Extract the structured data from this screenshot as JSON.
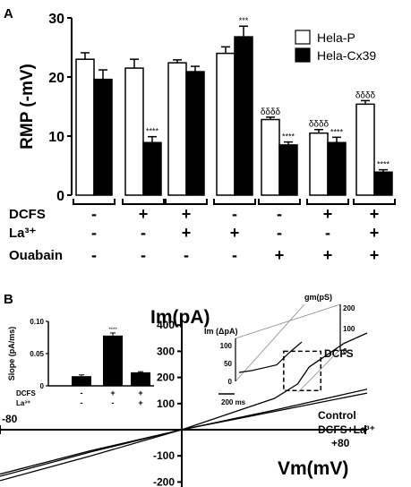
{
  "panels": {
    "a_label": "A",
    "b_label": "B"
  },
  "chart_data": [
    {
      "type": "bar",
      "panel": "A",
      "ylabel": "RMP (-mV)",
      "ylim": [
        0,
        30
      ],
      "yticks": [
        "0",
        "10",
        "20",
        "30"
      ],
      "legend": {
        "placement": "top-right",
        "items": [
          {
            "name": "Hela-P",
            "fill": "#ffffff"
          },
          {
            "name": "Hela-Cx39",
            "fill": "#000000"
          }
        ]
      },
      "conditions": [
        {
          "name": "DCFS",
          "marks": [
            "-",
            "+",
            "+",
            "-",
            "-",
            "+",
            "+"
          ]
        },
        {
          "name": "La³⁺",
          "marks": [
            "-",
            "-",
            "+",
            "+",
            "-",
            "-",
            "+"
          ]
        },
        {
          "name": "Ouabain",
          "marks": [
            "-",
            "-",
            "-",
            "-",
            "+",
            "+",
            "+"
          ]
        }
      ],
      "series": [
        {
          "name": "Hela-P",
          "values": [
            23.0,
            21.5,
            22.4,
            24.0,
            12.8,
            10.5,
            15.4
          ],
          "errors": [
            1.1,
            1.5,
            0.5,
            1.1,
            0.4,
            0.6,
            0.6
          ],
          "annotations": [
            "",
            "",
            "",
            "",
            "δδδδ",
            "δδδδ",
            "δδδδ"
          ]
        },
        {
          "name": "Hela-Cx39",
          "values": [
            19.6,
            8.9,
            20.9,
            26.8,
            8.5,
            8.9,
            3.9
          ],
          "errors": [
            1.6,
            1.0,
            0.9,
            1.8,
            0.5,
            0.9,
            0.4
          ],
          "annotations": [
            "",
            "****",
            "",
            "***",
            "****",
            "****",
            "****"
          ]
        }
      ]
    },
    {
      "type": "line",
      "panel": "B",
      "ylabel": "Im(pA)",
      "xlabel": "Vm(mV)",
      "xlim": [
        -80,
        80
      ],
      "ylim": [
        -220,
        420
      ],
      "yticks": [
        "-200",
        "-100",
        "100",
        "200",
        "300",
        "400"
      ],
      "xtick_labels": {
        "left": "-80",
        "right": "+80"
      },
      "series": [
        {
          "name": "DCFS",
          "x": [
            -80,
            -40,
            0,
            20,
            40,
            50,
            55,
            70,
            80
          ],
          "y": [
            -195,
            -100,
            0,
            60,
            120,
            175,
            240,
            330,
            370
          ]
        },
        {
          "name": "Control",
          "x": [
            -80,
            -40,
            0,
            40,
            80
          ],
          "y": [
            -170,
            -80,
            0,
            75,
            155
          ]
        },
        {
          "name": "DCFS+La³⁺",
          "x": [
            -80,
            -40,
            0,
            40,
            80
          ],
          "y": [
            -178,
            -85,
            0,
            70,
            140
          ]
        }
      ],
      "zoom_box": {
        "x": [
          44,
          60
        ],
        "y": [
          150,
          300
        ]
      }
    },
    {
      "type": "bar",
      "panel": "B-inset-left",
      "ylabel": "Slope (pA/ms)",
      "ylim": [
        0,
        0.1
      ],
      "yticks": [
        "0",
        "0.05",
        "0.10"
      ],
      "categories": [
        "1",
        "2",
        "3"
      ],
      "conditions": [
        {
          "name": "DCFS",
          "marks": [
            "-",
            "+",
            "+"
          ]
        },
        {
          "name": "La³⁺",
          "marks": [
            "-",
            "-",
            "+"
          ]
        }
      ],
      "values": [
        0.015,
        0.078,
        0.021
      ],
      "errors": [
        0.002,
        0.004,
        0.001
      ],
      "annotations": [
        "",
        "****",
        ""
      ]
    },
    {
      "type": "line",
      "panel": "B-inset-right",
      "left_axis": {
        "label": "Im (ΔpA)",
        "ticks": [
          "0",
          "50",
          "100"
        ],
        "ylim": [
          0,
          120
        ]
      },
      "right_axis": {
        "label": "gm(pS)",
        "ticks": [
          "0",
          "100",
          "200"
        ],
        "ylim": [
          0,
          220
        ]
      },
      "scale_bar": "200 ms",
      "trace": {
        "t": [
          0,
          20,
          40,
          60,
          80,
          100
        ],
        "y": [
          25,
          30,
          38,
          46,
          80,
          110
        ]
      }
    }
  ]
}
